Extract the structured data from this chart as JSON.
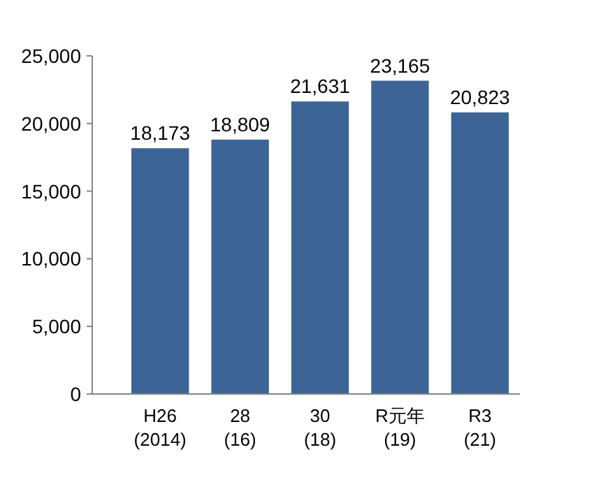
{
  "chart_data": {
    "type": "bar",
    "categories": [
      "H26\n(2014)",
      "28\n(16)",
      "30\n(18)",
      "R元年\n(19)",
      "R3\n(21)"
    ],
    "values": [
      18173,
      18809,
      21631,
      23165,
      20823
    ],
    "value_labels": [
      "18,173",
      "18,809",
      "21,631",
      "23,165",
      "20,823"
    ],
    "color": "#3d6496",
    "ylim": [
      0,
      25000
    ],
    "yticks": [
      0,
      {
        "value": 5000,
        "label": "5,000"
      },
      {
        "value": 10000,
        "label": "10,000"
      },
      {
        "value": 15000,
        "label": "15,000"
      },
      {
        "value": 20000,
        "label": "20,000"
      },
      {
        "value": 25000,
        "label": "25,000"
      }
    ],
    "grid": false
  }
}
